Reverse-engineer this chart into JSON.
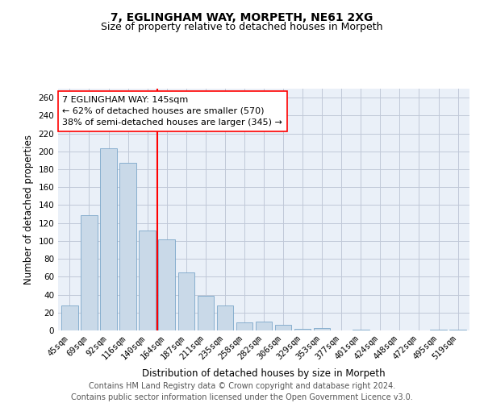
{
  "title_line1": "7, EGLINGHAM WAY, MORPETH, NE61 2XG",
  "title_line2": "Size of property relative to detached houses in Morpeth",
  "xlabel": "Distribution of detached houses by size in Morpeth",
  "ylabel": "Number of detached properties",
  "categories": [
    "45sqm",
    "69sqm",
    "92sqm",
    "116sqm",
    "140sqm",
    "164sqm",
    "187sqm",
    "211sqm",
    "235sqm",
    "258sqm",
    "282sqm",
    "306sqm",
    "329sqm",
    "353sqm",
    "377sqm",
    "401sqm",
    "424sqm",
    "448sqm",
    "472sqm",
    "495sqm",
    "519sqm"
  ],
  "values": [
    28,
    129,
    203,
    187,
    112,
    102,
    65,
    39,
    28,
    9,
    10,
    6,
    2,
    3,
    0,
    1,
    0,
    0,
    0,
    1,
    1
  ],
  "bar_color": "#c9d9e8",
  "bar_edge_color": "#7ba7c9",
  "vline_x_index": 4,
  "annotation_line1": "7 EGLINGHAM WAY: 145sqm",
  "annotation_line2": "← 62% of detached houses are smaller (570)",
  "annotation_line3": "38% of semi-detached houses are larger (345) →",
  "annotation_box_color": "white",
  "annotation_box_edge": "red",
  "vline_color": "red",
  "ylim": [
    0,
    270
  ],
  "yticks": [
    0,
    20,
    40,
    60,
    80,
    100,
    120,
    140,
    160,
    180,
    200,
    220,
    240,
    260
  ],
  "grid_color": "#c0c8d8",
  "bg_color": "#eaf0f8",
  "footer": "Contains HM Land Registry data © Crown copyright and database right 2024.\nContains public sector information licensed under the Open Government Licence v3.0.",
  "title_fontsize": 10,
  "subtitle_fontsize": 9,
  "axis_label_fontsize": 8.5,
  "tick_fontsize": 7.5,
  "annotation_fontsize": 8,
  "footer_fontsize": 7
}
